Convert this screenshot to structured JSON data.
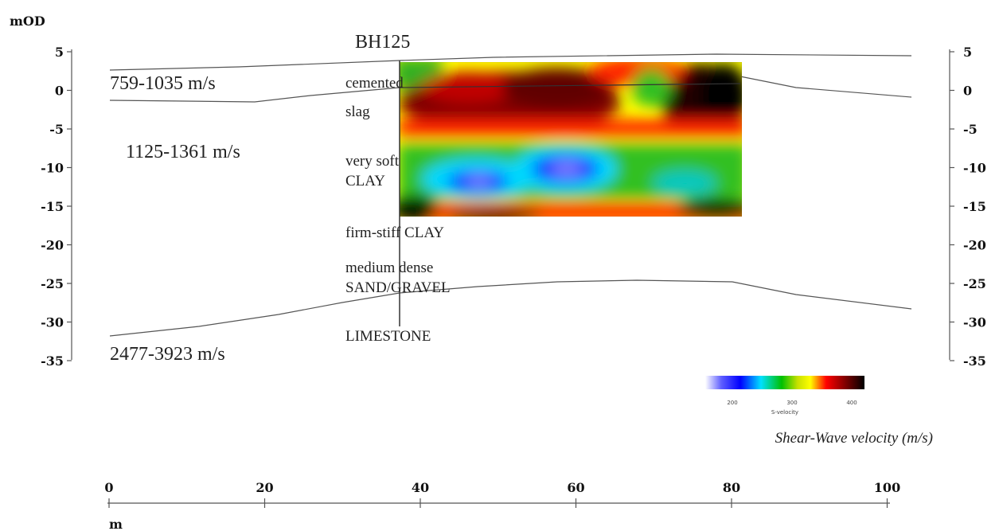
{
  "y_axis": {
    "unit": "mOD",
    "ticks": [
      "5",
      "0",
      "-5",
      "-10",
      "-15",
      "-20",
      "-25",
      "-30",
      "-35"
    ]
  },
  "x_axis": {
    "unit": "m",
    "ticks": [
      "0",
      "20",
      "40",
      "60",
      "80",
      "100"
    ]
  },
  "borehole": {
    "label": "BH125",
    "layers": [
      {
        "line1": "cemented",
        "line2": ""
      },
      {
        "line1": "slag",
        "line2": ""
      },
      {
        "line1": "very soft",
        "line2": "CLAY"
      },
      {
        "line1": "firm-stiff CLAY",
        "line2": ""
      },
      {
        "line1": "medium dense",
        "line2": "SAND/GRAVEL"
      },
      {
        "line1": "LIMESTONE",
        "line2": ""
      }
    ]
  },
  "velocity_zones": [
    "759-1035 m/s",
    "1125-1361 m/s",
    "2477-3923 m/s"
  ],
  "legend": {
    "title": "Shear-Wave velocity (m/s)",
    "tick_labels": [
      "200",
      "300",
      "400"
    ],
    "caption": "S-velocity",
    "colors": [
      "#ffffff",
      "#0000ff",
      "#00e0ff",
      "#00c000",
      "#c8e000",
      "#ffff00",
      "#ff0000",
      "#800000",
      "#000000"
    ]
  },
  "colors": {
    "line": "#555555",
    "text": "#222222"
  }
}
